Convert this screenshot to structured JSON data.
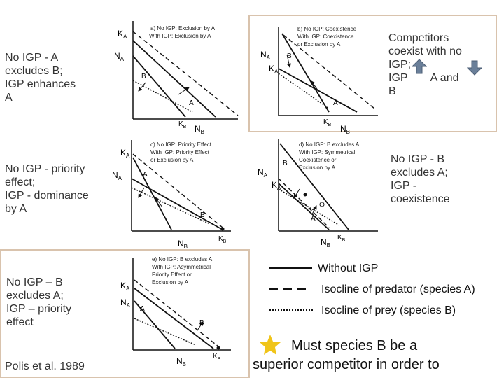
{
  "captions": {
    "a": [
      "No IGP - A",
      "excludes B;",
      "IGP enhances",
      "A"
    ],
    "b": [
      "Competitors",
      "coexist with no",
      "IGP;",
      "IGP",
      "A and",
      "B"
    ],
    "c": [
      "No IGP - priority",
      "effect;",
      "IGP - dominance",
      "by A"
    ],
    "d": [
      "No IGP - B",
      "excludes A;",
      "IGP -",
      "coexistence"
    ],
    "e": [
      "No IGP – B",
      "excludes A;",
      "IGP – priority",
      "effect"
    ]
  },
  "citation": "Polis et al. 1989",
  "panels": {
    "a": {
      "title": [
        "a) No IGP: Exclusion by A",
        "With IGP: Exclusion by A"
      ],
      "labels": {
        "ka": "K",
        "ka_sub": "A",
        "na": "N",
        "na_sub": "A",
        "b": "B",
        "a": "A",
        "kb": "K",
        "kb_sub": "B",
        "nb": "N",
        "nb_sub": "B"
      }
    },
    "b": {
      "title": [
        "b) No IGP: Coexistence",
        "With IGP: Coexistence",
        "or Exclusion by A"
      ],
      "labels": {
        "na": "N",
        "na_sub": "A",
        "ka": "K",
        "ka_sub": "A",
        "b": "B",
        "a": "A",
        "kb": "K",
        "kb_sub": "B",
        "nb": "N",
        "nb_sub": "B"
      }
    },
    "c": {
      "title": [
        "c) No IGP: Priority Effect",
        "With IGP: Priority Effect",
        "or Exclusion by A"
      ],
      "labels": {
        "ka": "K",
        "ka_sub": "A",
        "na": "N",
        "na_sub": "A",
        "a": "A",
        "b": "B",
        "nb": "N",
        "nb_sub": "B",
        "kb": "K",
        "kb_sub": "B"
      }
    },
    "d": {
      "title": [
        "d) No IGP: B excludes A",
        "With IGP: Symmetrical",
        "Coexistence or",
        "Exclusion by A"
      ],
      "labels": {
        "na": "N",
        "na_sub": "A",
        "ka": "K",
        "ka_sub": "A",
        "b": "B",
        "a": "A",
        "nb": "N",
        "nb_sub": "B",
        "kb": "K",
        "kb_sub": "B"
      }
    },
    "e": {
      "title": [
        "e) No IGP: B excludes A",
        "With IGP: Asymmetrical",
        "Priority Effect or",
        "Exclusion by A"
      ],
      "labels": {
        "ka": "K",
        "ka_sub": "A",
        "na": "N",
        "na_sub": "A",
        "a": "A",
        "b": "B",
        "nb": "N",
        "nb_sub": "B",
        "kb": "K",
        "kb_sub": "B"
      }
    }
  },
  "legend": {
    "solid": "Without IGP",
    "dashed": "Isocline of predator (species A)",
    "dotted": "Isocline of prey (species B)"
  },
  "question": [
    "Must species B be a",
    "superior competitor in order to"
  ],
  "colors": {
    "frame": "#d9c3ad",
    "star": "#f0c419",
    "arrow": "#6a7f99"
  }
}
